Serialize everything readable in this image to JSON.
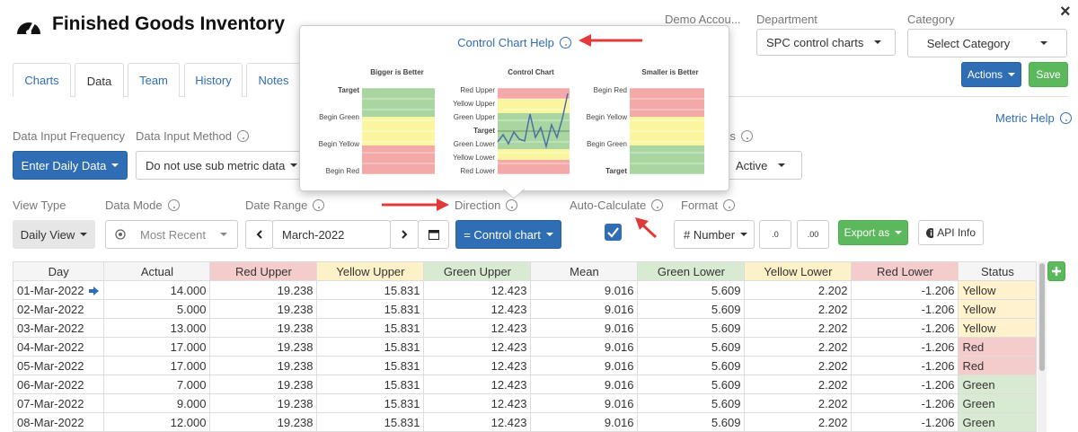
{
  "header": {
    "title": "Finished Goods Inventory",
    "account": "Demo Accou...",
    "department_label": "Department",
    "department_value": "SPC control charts",
    "category_label": "Category",
    "category_value": "Select Category",
    "close": "×"
  },
  "tabs": [
    "Charts",
    "Data",
    "Team",
    "History",
    "Notes"
  ],
  "buttons": {
    "actions": "Actions",
    "save": "Save",
    "metric_help": "Metric Help"
  },
  "controls": {
    "input_frequency_label": "Data Input Frequency",
    "input_method_label": "Data Input Method",
    "enter_daily": "Enter Daily Data",
    "input_method_value": "Do not use sub metric data",
    "status_label": "Status",
    "status_value": "Active",
    "view_type_label": "View Type",
    "view_type_value": "Daily View",
    "data_mode_label": "Data Mode",
    "data_mode_value": "Most Recent",
    "date_range_label": "Date Range",
    "date_range_value": "March-2022",
    "direction_label": "Direction",
    "direction_value": "= Control chart",
    "auto_calc_label": "Auto-Calculate",
    "format_label": "Format",
    "format_value": "# Number",
    "decimal_less": ".0",
    "decimal_more": ".00",
    "export": "Export as",
    "api_info": "API Info"
  },
  "popup": {
    "title": "Control Chart Help",
    "charts": [
      {
        "title": "Bigger is Better",
        "labels": [
          "Target",
          "Begin Green",
          "Begin Yellow",
          "Begin Red"
        ]
      },
      {
        "title": "Control Chart",
        "labels": [
          "Red Upper",
          "Yellow Upper",
          "Green Upper",
          "Target",
          "Green Lower",
          "Yellow Lower",
          "Red Lower"
        ]
      },
      {
        "title": "Smaller is Better",
        "labels": [
          "Begin Red",
          "Begin Yellow",
          "Begin Green",
          "Target"
        ]
      }
    ]
  },
  "table": {
    "headers": [
      "Day",
      "Actual",
      "Red Upper",
      "Yellow Upper",
      "Green Upper",
      "Mean",
      "Green Lower",
      "Yellow Lower",
      "Red Lower",
      "Status"
    ],
    "rows": [
      [
        "01-Mar-2022",
        "14.000",
        "19.238",
        "15.831",
        "12.423",
        "9.016",
        "5.609",
        "2.202",
        "-1.206",
        "Yellow"
      ],
      [
        "02-Mar-2022",
        "5.000",
        "19.238",
        "15.831",
        "12.423",
        "9.016",
        "5.609",
        "2.202",
        "-1.206",
        "Yellow"
      ],
      [
        "03-Mar-2022",
        "13.000",
        "19.238",
        "15.831",
        "12.423",
        "9.016",
        "5.609",
        "2.202",
        "-1.206",
        "Yellow"
      ],
      [
        "04-Mar-2022",
        "17.000",
        "19.238",
        "15.831",
        "12.423",
        "9.016",
        "5.609",
        "2.202",
        "-1.206",
        "Red"
      ],
      [
        "05-Mar-2022",
        "17.000",
        "19.238",
        "15.831",
        "12.423",
        "9.016",
        "5.609",
        "2.202",
        "-1.206",
        "Red"
      ],
      [
        "06-Mar-2022",
        "7.000",
        "19.238",
        "15.831",
        "12.423",
        "9.016",
        "5.609",
        "2.202",
        "-1.206",
        "Green"
      ],
      [
        "07-Mar-2022",
        "9.000",
        "19.238",
        "15.831",
        "12.423",
        "9.016",
        "5.609",
        "2.202",
        "-1.206",
        "Green"
      ],
      [
        "08-Mar-2022",
        "12.000",
        "19.238",
        "15.831",
        "12.423",
        "9.016",
        "5.609",
        "2.202",
        "-1.206",
        "Green"
      ]
    ]
  }
}
